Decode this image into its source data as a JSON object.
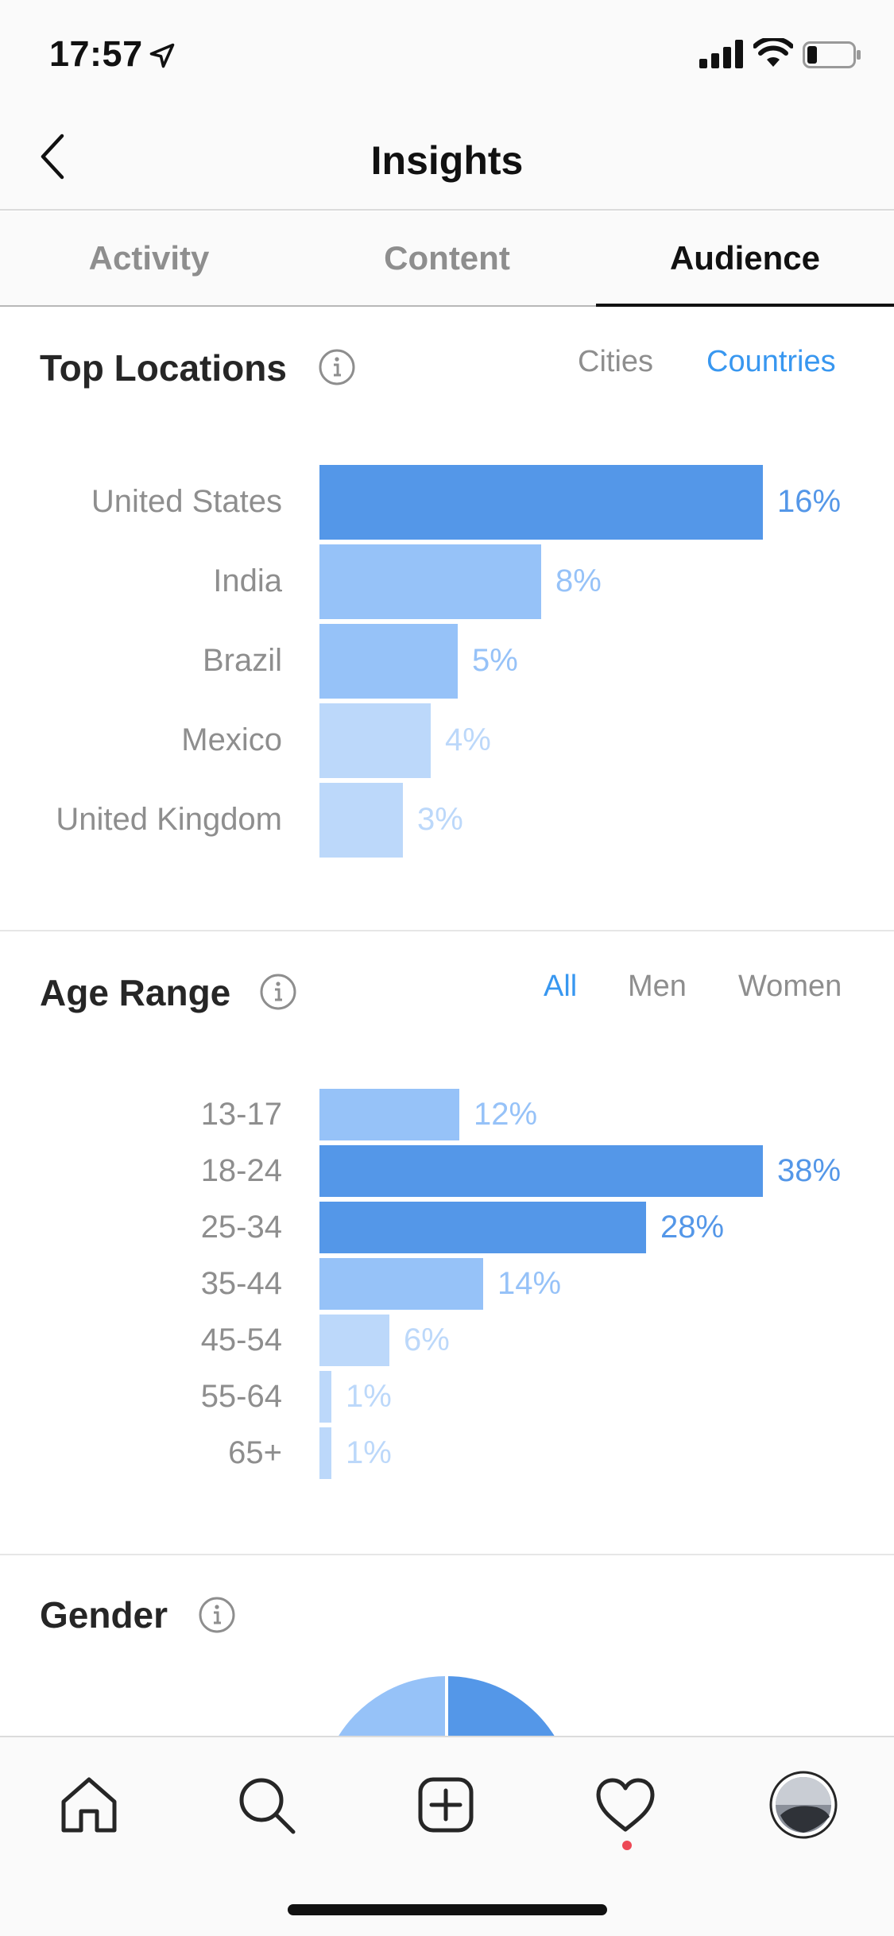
{
  "status_bar": {
    "time": "17:57"
  },
  "header": {
    "title": "Insights"
  },
  "tabs": [
    {
      "label": "Activity",
      "active": false
    },
    {
      "label": "Content",
      "active": false
    },
    {
      "label": "Audience",
      "active": true
    }
  ],
  "colors": {
    "accent": "#3897f0",
    "bar_dark": "#5497e8",
    "bar_mid": "#96c2f8",
    "bar_light": "#bcd8fa",
    "text_dark": "#5497e8",
    "text_mid": "#96c2f8",
    "text_light": "#bcd8fa"
  },
  "top_locations": {
    "title": "Top Locations",
    "filters": [
      "Cities",
      "Countries"
    ],
    "active_filter": "Countries",
    "chart_data": {
      "type": "bar",
      "categories": [
        "United States",
        "India",
        "Brazil",
        "Mexico",
        "United Kingdom"
      ],
      "values": [
        16,
        8,
        5,
        4,
        3
      ],
      "value_labels": [
        "16%",
        "8%",
        "5%",
        "4%",
        "3%"
      ],
      "unit": "%"
    }
  },
  "age_range": {
    "title": "Age Range",
    "filters": [
      "All",
      "Men",
      "Women"
    ],
    "active_filter": "All",
    "chart_data": {
      "type": "bar",
      "categories": [
        "13-17",
        "18-24",
        "25-34",
        "35-44",
        "45-54",
        "55-64",
        "65+"
      ],
      "values": [
        12,
        38,
        28,
        14,
        6,
        1,
        1
      ],
      "value_labels": [
        "12%",
        "38%",
        "28%",
        "14%",
        "6%",
        "1%",
        "1%"
      ],
      "unit": "%"
    }
  },
  "gender": {
    "title": "Gender",
    "chart_data": {
      "type": "pie"
    }
  },
  "bottom_nav": {
    "items": [
      "home-icon",
      "search-icon",
      "add-post-icon",
      "activity-heart-icon",
      "profile-avatar"
    ],
    "notification_dot_color": "#ed4956"
  }
}
